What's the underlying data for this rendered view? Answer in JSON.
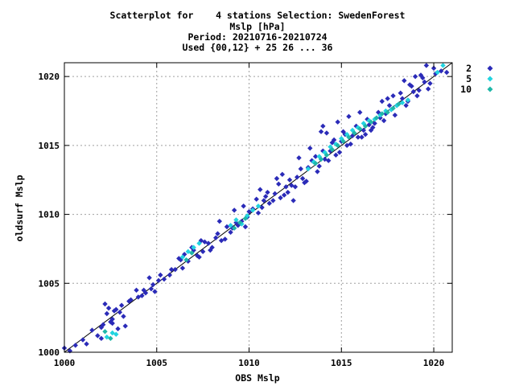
{
  "chart_data": {
    "type": "scatter",
    "title_lines": [
      "Scatterplot for    4 stations Selection: SwedenForest",
      "Mslp [hPa]",
      "Period: 20210716-20210724",
      "Used {00,12} + 25 26 ... 36"
    ],
    "xlabel": "OBS Mslp",
    "ylabel": "oldsurf Mslp",
    "xlim": [
      1000,
      1021
    ],
    "ylim": [
      1000,
      1021
    ],
    "xticks": [
      1000,
      1005,
      1010,
      1015,
      1020
    ],
    "yticks": [
      1000,
      1005,
      1010,
      1015,
      1020
    ],
    "grid": true,
    "legend_position": "right",
    "diagonal_line": true,
    "series": [
      {
        "name": "2",
        "color": "#2b2bb8",
        "x": [
          1000.0,
          1000.3,
          1000.6,
          1001.0,
          1001.5,
          1001.8,
          1002.1,
          1002.3,
          1002.4,
          1002.6,
          1002.8,
          1003.0,
          1003.1,
          1002.2,
          1002.5,
          1002.7,
          1002.0,
          1002.9,
          1003.2,
          1003.6,
          1003.9,
          1004.2,
          1004.4,
          1004.7,
          1004.9,
          1005.1,
          1005.4,
          1005.7,
          1006.0,
          1006.2,
          1006.4,
          1006.7,
          1007.0,
          1007.2,
          1007.5,
          1007.8,
          1008.0,
          1008.2,
          1008.5,
          1008.8,
          1009.0,
          1009.3,
          1009.6,
          1009.9,
          1010.2,
          1010.5,
          1010.8,
          1011.1,
          1011.4,
          1011.7,
          1012.0,
          1012.3,
          1012.6,
          1012.9,
          1013.2,
          1013.5,
          1013.8,
          1014.1,
          1014.4,
          1014.7,
          1015.0,
          1015.3,
          1015.6,
          1015.9,
          1016.2,
          1016.5,
          1016.8,
          1017.1,
          1017.4,
          1017.7,
          1018.0,
          1018.3,
          1018.6,
          1018.9,
          1019.2,
          1019.5,
          1019.8,
          1020.1,
          1020.4,
          1020.7,
          1004.0,
          1004.3,
          1003.5,
          1004.6,
          1006.5,
          1006.9,
          1007.3,
          1007.6,
          1007.9,
          1008.3,
          1008.7,
          1009.1,
          1009.4,
          1009.7,
          1010.0,
          1010.4,
          1010.7,
          1011.0,
          1011.3,
          1011.6,
          1011.9,
          1012.2,
          1012.5,
          1012.8,
          1013.1,
          1013.4,
          1013.7,
          1014.0,
          1014.3,
          1014.6,
          1014.9,
          1015.2,
          1015.5,
          1015.8,
          1016.1,
          1016.4,
          1016.7,
          1017.0,
          1017.3,
          1017.6,
          1017.9,
          1018.2,
          1018.5,
          1018.8,
          1019.1,
          1019.4,
          1019.7,
          1020.0,
          1008.4,
          1009.2,
          1010.6,
          1011.8,
          1012.7,
          1013.3,
          1013.9,
          1014.2,
          1014.8,
          1015.4,
          1016.0,
          1016.6,
          1017.2,
          1017.8,
          1018.4,
          1019.0,
          1019.6,
          1007.4,
          1006.3,
          1005.8,
          1005.2,
          1004.8,
          1009.8,
          1010.9,
          1012.1,
          1013.6,
          1014.5,
          1016.3,
          1017.5,
          1018.7,
          1019.3,
          1012.4,
          1011.5,
          1013.0,
          1014.0,
          1015.1,
          1003.3,
          1002.6,
          1001.2,
          1002.0
        ],
        "y": [
          1000.3,
          1000.1,
          1000.5,
          1000.9,
          1001.6,
          1001.2,
          1002.0,
          1002.8,
          1003.2,
          1002.4,
          1003.1,
          1002.9,
          1003.4,
          1003.5,
          1002.2,
          1003.0,
          1001.8,
          1001.7,
          1002.6,
          1003.8,
          1004.5,
          1004.1,
          1004.3,
          1004.6,
          1004.4,
          1005.2,
          1005.3,
          1005.6,
          1006.0,
          1006.8,
          1006.1,
          1006.6,
          1007.4,
          1007.0,
          1007.3,
          1007.9,
          1007.6,
          1008.3,
          1008.1,
          1009.1,
          1008.7,
          1009.4,
          1009.5,
          1009.8,
          1010.4,
          1010.1,
          1011.0,
          1010.8,
          1011.5,
          1011.2,
          1012.0,
          1012.1,
          1012.7,
          1012.6,
          1013.4,
          1013.8,
          1013.5,
          1014.0,
          1014.6,
          1014.3,
          1015.3,
          1015.0,
          1015.7,
          1015.6,
          1016.1,
          1016.5,
          1016.6,
          1017.0,
          1017.3,
          1017.6,
          1017.9,
          1018.4,
          1018.2,
          1018.9,
          1019.0,
          1019.6,
          1019.5,
          1020.2,
          1020.4,
          1020.3,
          1004.0,
          1004.5,
          1003.7,
          1005.4,
          1007.1,
          1007.6,
          1006.9,
          1008.0,
          1007.4,
          1008.6,
          1008.2,
          1009.0,
          1009.2,
          1010.6,
          1010.2,
          1011.1,
          1010.5,
          1011.6,
          1011.0,
          1012.2,
          1011.4,
          1012.5,
          1012.0,
          1013.3,
          1012.4,
          1013.9,
          1013.1,
          1014.6,
          1013.9,
          1015.4,
          1014.5,
          1015.8,
          1015.1,
          1016.4,
          1015.6,
          1016.9,
          1016.3,
          1017.4,
          1016.8,
          1017.9,
          1017.2,
          1018.8,
          1017.9,
          1019.3,
          1018.6,
          1019.9,
          1019.1,
          1020.6,
          1009.5,
          1010.3,
          1011.8,
          1012.9,
          1014.1,
          1014.8,
          1016.0,
          1015.9,
          1016.7,
          1017.1,
          1017.4,
          1016.1,
          1018.2,
          1018.6,
          1019.7,
          1020.0,
          1020.8,
          1008.1,
          1006.7,
          1006.0,
          1005.6,
          1004.9,
          1009.1,
          1011.3,
          1011.6,
          1014.2,
          1015.2,
          1015.8,
          1018.4,
          1019.4,
          1020.1,
          1011.0,
          1012.6,
          1012.3,
          1016.4,
          1016.0,
          1001.9,
          1002.1,
          1000.6,
          1001.0
        ]
      },
      {
        "name": "5",
        "color": "#22d4e0",
        "x": [
          1002.3,
          1002.6,
          1002.8,
          1006.4,
          1006.7,
          1007.0,
          1007.3,
          1009.0,
          1009.3,
          1009.6,
          1009.9,
          1010.2,
          1010.5,
          1013.2,
          1013.5,
          1013.8,
          1014.1,
          1014.4,
          1014.7,
          1015.0,
          1015.3,
          1015.6,
          1015.9,
          1016.2,
          1016.5,
          1016.8,
          1017.1,
          1017.4,
          1017.7,
          1018.0,
          1018.3,
          1018.6,
          1020.2,
          1020.5
        ],
        "y": [
          1001.1,
          1001.4,
          1001.3,
          1006.9,
          1007.3,
          1007.6,
          1007.9,
          1009.2,
          1009.6,
          1009.3,
          1009.9,
          1010.3,
          1010.6,
          1013.3,
          1013.8,
          1014.2,
          1014.5,
          1014.9,
          1015.1,
          1015.5,
          1015.8,
          1016.1,
          1016.3,
          1016.6,
          1016.8,
          1016.9,
          1017.2,
          1017.5,
          1017.6,
          1017.9,
          1018.1,
          1018.3,
          1020.3,
          1020.8
        ]
      },
      {
        "name": "10",
        "color": "#1fb7a8",
        "x": [
          1002.2,
          1002.5,
          1006.6,
          1006.9,
          1009.2,
          1009.5,
          1009.8,
          1013.6,
          1013.9,
          1014.2,
          1014.5,
          1014.8,
          1015.1,
          1015.4,
          1015.7,
          1016.0,
          1016.3,
          1016.6,
          1016.9,
          1017.2,
          1017.5,
          1017.8,
          1018.1
        ],
        "y": [
          1001.5,
          1001.0,
          1006.7,
          1007.2,
          1009.0,
          1009.4,
          1009.7,
          1013.7,
          1014.0,
          1014.3,
          1014.7,
          1015.0,
          1015.3,
          1015.6,
          1015.9,
          1016.2,
          1016.4,
          1016.7,
          1017.0,
          1017.3,
          1017.4,
          1017.7,
          1018.0
        ]
      }
    ]
  }
}
